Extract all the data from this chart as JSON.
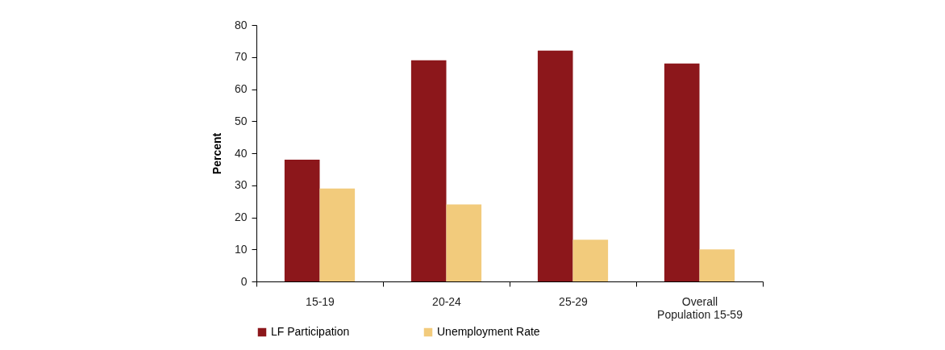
{
  "chart_data": {
    "type": "bar",
    "ylabel": "Percent",
    "categories": [
      "15-19",
      "20-24",
      "25-29",
      "Overall Population 15-59"
    ],
    "series": [
      {
        "name": "LF Participation",
        "color": "#8c171b",
        "values": [
          38,
          69,
          72,
          68
        ]
      },
      {
        "name": "Unemployment Rate",
        "color": "#f2cb7c",
        "values": [
          29,
          24,
          13,
          10
        ]
      }
    ],
    "ylim": [
      0,
      80
    ],
    "yticks": [
      0,
      10,
      20,
      30,
      40,
      50,
      60,
      70,
      80
    ],
    "grid": false,
    "legend": "bottom"
  }
}
